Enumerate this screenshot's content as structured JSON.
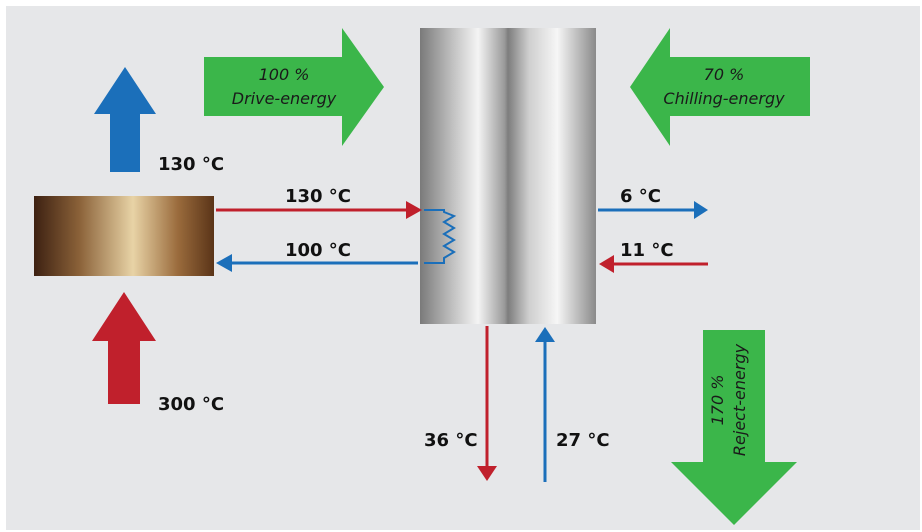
{
  "colors": {
    "background": "#e6e7e9",
    "hot": "#c0202c",
    "cold": "#1b6fba",
    "energy": "#3bb64a"
  },
  "energy_arrows": {
    "drive": {
      "percent": "100 %",
      "label": "Drive-energy"
    },
    "chilling": {
      "percent": "70 %",
      "label": "Chilling-energy"
    },
    "reject": {
      "percent": "170 %",
      "label": "Reject-energy"
    }
  },
  "temperatures": {
    "exhaust": "130 °C",
    "source": "300 °C",
    "supply": "130 °C",
    "return": "100 °C",
    "chilled_out": "6 °C",
    "chilled_in": "11 °C",
    "cooling_out": "36 °C",
    "cooling_in": "27 °C"
  }
}
